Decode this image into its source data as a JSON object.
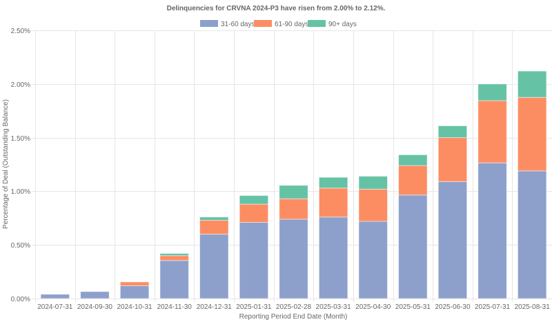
{
  "chart_data": {
    "type": "bar",
    "stacked": true,
    "title": "Delinquencies for CRVNA 2024-P3 have risen from 2.00% to 2.12%.",
    "xlabel": "Reporting Period End Date (Month)",
    "ylabel": "Percentage of Deal (Outstanding Balance)",
    "ylim": [
      0,
      2.5
    ],
    "yticks": [
      "0.00%",
      "0.50%",
      "1.00%",
      "1.50%",
      "2.00%",
      "2.50%"
    ],
    "ytick_values": [
      0,
      0.5,
      1.0,
      1.5,
      2.0,
      2.5
    ],
    "grid": true,
    "legend_position": "top",
    "categories": [
      "2024-07-31",
      "2024-09-30",
      "2024-10-31",
      "2024-11-30",
      "2024-12-31",
      "2025-01-31",
      "2025-02-28",
      "2025-03-31",
      "2025-04-30",
      "2025-05-31",
      "2025-06-30",
      "2025-07-31",
      "2025-08-31"
    ],
    "series": [
      {
        "name": "31-60 days",
        "color": "#8da0cb",
        "values": [
          0.04,
          0.065,
          0.12,
          0.355,
          0.6,
          0.71,
          0.74,
          0.76,
          0.72,
          0.965,
          1.09,
          1.265,
          1.19
        ]
      },
      {
        "name": "61-90 days",
        "color": "#fc8d62",
        "values": [
          0.0,
          0.0,
          0.035,
          0.045,
          0.13,
          0.17,
          0.19,
          0.27,
          0.3,
          0.275,
          0.41,
          0.58,
          0.685
        ]
      },
      {
        "name": "90+ days",
        "color": "#66c2a5",
        "values": [
          0.0,
          0.0,
          0.0,
          0.02,
          0.03,
          0.08,
          0.125,
          0.1,
          0.12,
          0.1,
          0.11,
          0.155,
          0.245
        ]
      }
    ]
  }
}
